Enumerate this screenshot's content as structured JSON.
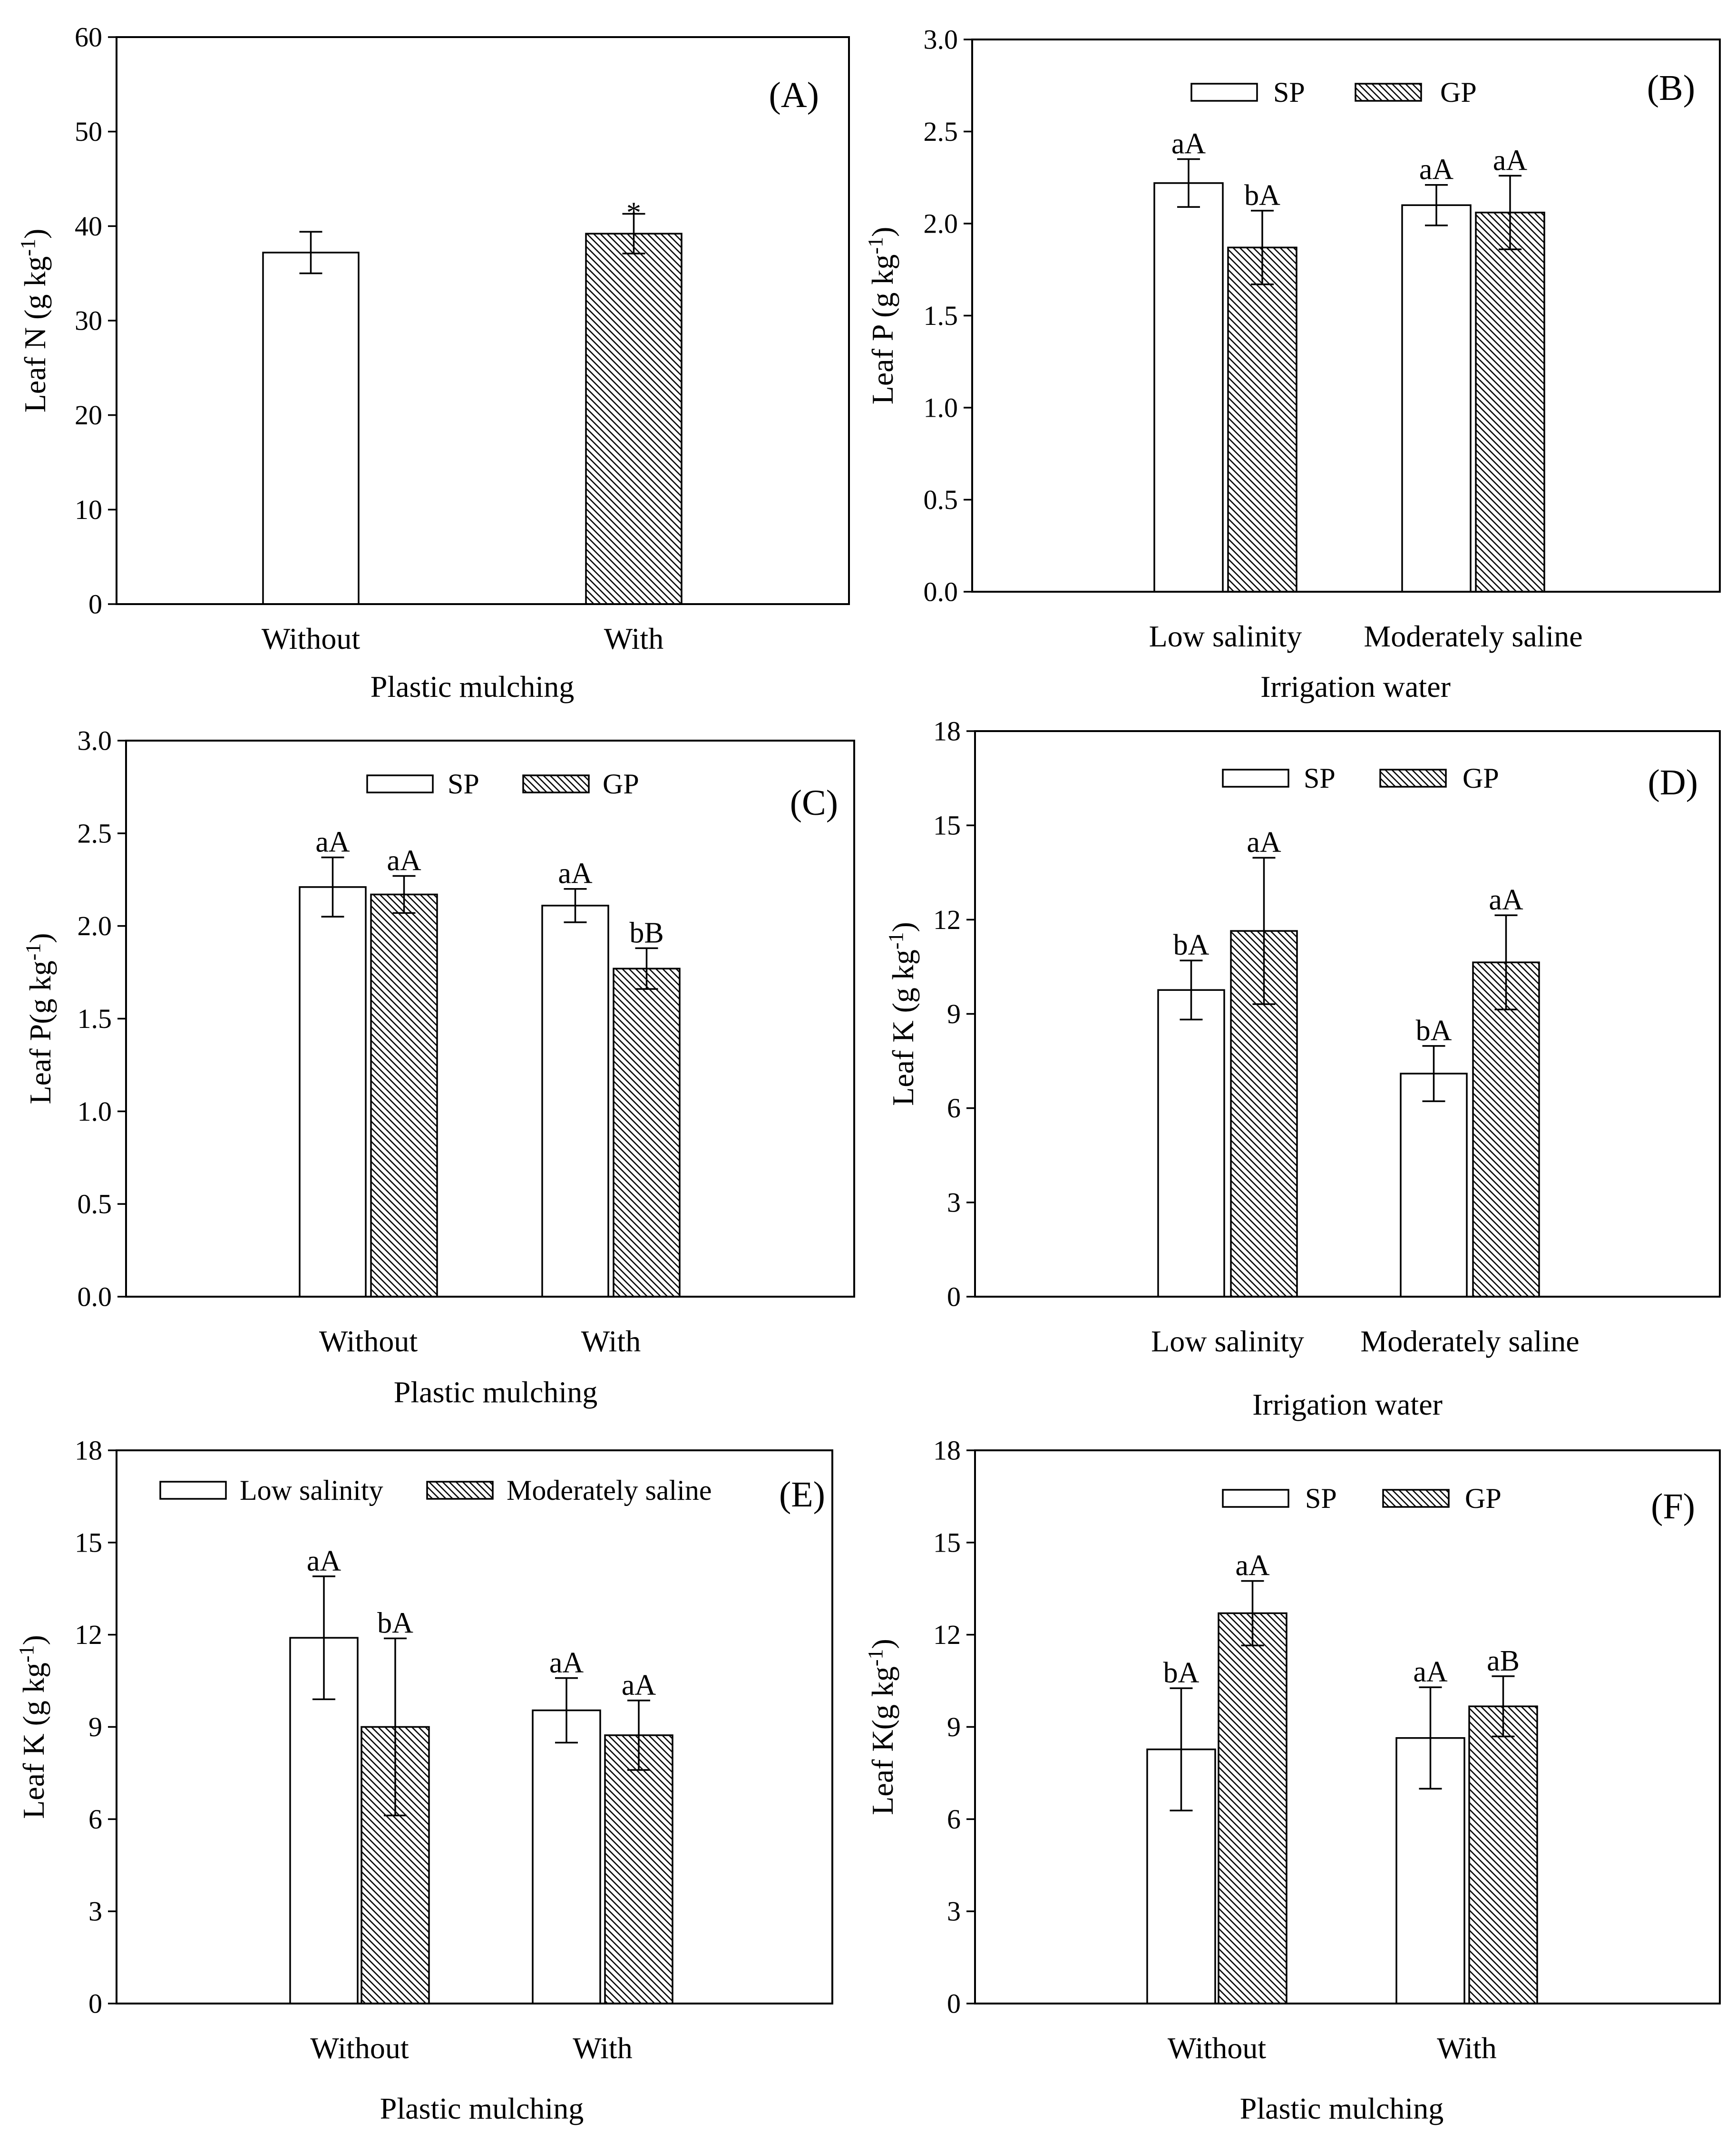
{
  "chart_data": [
    {
      "type": "bar",
      "panel": "(A)",
      "categories": [
        "Without",
        "With"
      ],
      "xlabel": "Plastic mulching",
      "ylabel": {
        "main": "Leaf N (g kg",
        "sup": "-1",
        "end": ")"
      },
      "ylim": [
        0,
        60
      ],
      "yticks": [
        "0",
        "10",
        "20",
        "30",
        "40",
        "50",
        "60"
      ],
      "series": [
        {
          "values": [
            37.2,
            39.2
          ],
          "errors": [
            2.2,
            2.1
          ],
          "labels": [
            null,
            "*"
          ]
        }
      ]
    },
    {
      "type": "bar",
      "panel": "(B)",
      "categories": [
        "Low salinity",
        "Moderately saline"
      ],
      "xlabel": "Irrigation water",
      "ylabel": {
        "main": "Leaf P (g kg",
        "sup": "-1",
        "end": ")"
      },
      "ylim": [
        0,
        3.0
      ],
      "yticks": [
        "0.0",
        "0.5",
        "1.0",
        "1.5",
        "2.0",
        "2.5",
        "3.0"
      ],
      "series": [
        {
          "name": "SP",
          "values": [
            2.22,
            2.1
          ],
          "errors": [
            0.13,
            0.11
          ],
          "labels": [
            "aA",
            "aA"
          ]
        },
        {
          "name": "GP",
          "values": [
            1.87,
            2.06
          ],
          "errors": [
            0.2,
            0.2
          ],
          "labels": [
            "bA",
            "aA"
          ]
        }
      ]
    },
    {
      "type": "bar",
      "panel": "(C)",
      "categories": [
        "Without",
        "With"
      ],
      "xlabel": "Plastic mulching",
      "ylabel": {
        "main": "Leaf P(g kg",
        "sup": "-1",
        "end": ")"
      },
      "ylim": [
        0,
        3.0
      ],
      "yticks": [
        "0.0",
        "0.5",
        "1.0",
        "1.5",
        "2.0",
        "2.5",
        "3.0"
      ],
      "series": [
        {
          "name": "SP",
          "values": [
            2.21,
            2.11
          ],
          "errors": [
            0.16,
            0.09
          ],
          "labels": [
            "aA",
            "aA"
          ]
        },
        {
          "name": "GP",
          "values": [
            2.17,
            1.77
          ],
          "errors": [
            0.1,
            0.11
          ],
          "labels": [
            "aA",
            "bB"
          ]
        }
      ]
    },
    {
      "type": "bar",
      "panel": "(D)",
      "categories": [
        "Low salinity",
        "Moderately saline"
      ],
      "xlabel": "Irrigation water",
      "ylabel": {
        "main": "Leaf K (g kg",
        "sup": "-1",
        "end": ")"
      },
      "ylim": [
        0,
        18
      ],
      "yticks": [
        "0",
        "3",
        "6",
        "9",
        "12",
        "15",
        "18"
      ],
      "series": [
        {
          "name": "SP",
          "values": [
            9.76,
            7.1
          ],
          "errors": [
            0.94,
            0.88
          ],
          "labels": [
            "bA",
            "bA"
          ]
        },
        {
          "name": "GP",
          "values": [
            11.64,
            10.64
          ],
          "errors": [
            2.33,
            1.5
          ],
          "labels": [
            "aA",
            "aA"
          ]
        }
      ]
    },
    {
      "type": "bar",
      "panel": "(E)",
      "categories": [
        "Without",
        "With"
      ],
      "xlabel": "Plastic mulching",
      "ylabel": {
        "main": "Leaf K (g kg",
        "sup": "-1",
        "end": ")"
      },
      "ylim": [
        0,
        18
      ],
      "yticks": [
        "0",
        "3",
        "6",
        "9",
        "12",
        "15",
        "18"
      ],
      "series": [
        {
          "name": "Low salinity",
          "values": [
            11.9,
            9.54
          ],
          "errors": [
            2.0,
            1.05
          ],
          "labels": [
            "aA",
            "aA"
          ]
        },
        {
          "name": "Moderately saline",
          "values": [
            9.0,
            8.73
          ],
          "errors": [
            2.88,
            1.13
          ],
          "labels": [
            "bA",
            "aA"
          ]
        }
      ]
    },
    {
      "type": "bar",
      "panel": "(F)",
      "categories": [
        "Without",
        "With"
      ],
      "xlabel": "Plastic mulching",
      "ylabel": {
        "main": "Leaf K(g kg",
        "sup": "-1",
        "end": ")"
      },
      "ylim": [
        0,
        18
      ],
      "yticks": [
        "0",
        "3",
        "6",
        "9",
        "12",
        "15",
        "18"
      ],
      "series": [
        {
          "name": "SP",
          "values": [
            8.27,
            8.64
          ],
          "errors": [
            1.99,
            1.65
          ],
          "labels": [
            "bA",
            "aA"
          ]
        },
        {
          "name": "GP",
          "values": [
            12.7,
            9.67
          ],
          "errors": [
            1.05,
            0.98
          ],
          "labels": [
            "aA",
            "aB"
          ]
        }
      ]
    }
  ]
}
